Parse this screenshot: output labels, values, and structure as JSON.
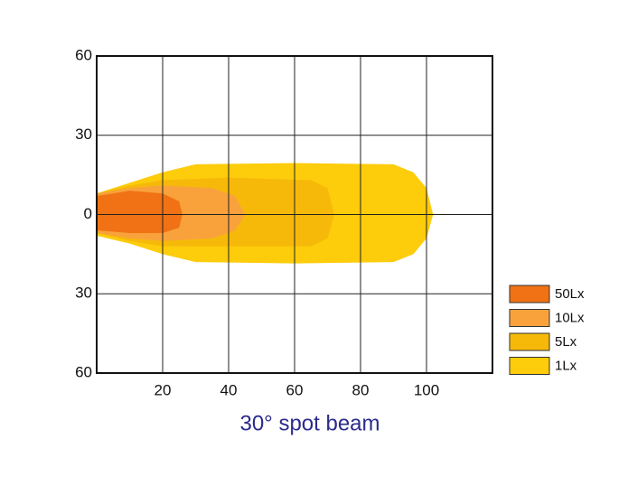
{
  "chart_data": {
    "type": "area",
    "title": "30°  spot beam",
    "xlim": [
      0,
      120
    ],
    "ylim": [
      -60,
      60
    ],
    "xticks": [
      20,
      40,
      60,
      80,
      100
    ],
    "yticks": [
      60,
      30,
      0,
      {
        "value": -30,
        "label": "30"
      },
      {
        "value": -60,
        "label": "60"
      }
    ],
    "grid": true,
    "legend": "right",
    "series": [
      {
        "name": "50Lx",
        "color": "#f07214",
        "x": [
          0,
          10,
          20,
          25,
          26,
          25,
          20,
          10,
          0
        ],
        "values": [
          7,
          9,
          8,
          5,
          0,
          -5,
          -7,
          -7,
          -6
        ]
      },
      {
        "name": "10Lx",
        "color": "#f9a23c",
        "x": [
          0,
          10,
          20,
          35,
          42,
          45,
          42,
          35,
          20,
          10,
          0
        ],
        "values": [
          8,
          10,
          11,
          10,
          7,
          0,
          -6,
          -9,
          -10,
          -9,
          -7
        ]
      },
      {
        "name": "5Lx",
        "color": "#f6b90a",
        "x": [
          0,
          10,
          20,
          40,
          65,
          70,
          72,
          70,
          65,
          40,
          20,
          10,
          0
        ],
        "values": [
          8,
          11,
          13,
          14,
          13,
          10,
          0,
          -9,
          -12,
          -12,
          -12,
          -10,
          -7
        ]
      },
      {
        "name": "1Lx",
        "color": "#fdcc0b",
        "x": [
          0,
          10,
          20,
          30,
          60,
          90,
          96,
          100,
          102,
          100,
          96,
          90,
          60,
          30,
          20,
          10,
          0
        ],
        "values": [
          8,
          12,
          16,
          19,
          19.5,
          19,
          16,
          10,
          0,
          -9,
          -15,
          -18,
          -18.5,
          -18,
          -15,
          -11,
          -8
        ]
      }
    ]
  }
}
